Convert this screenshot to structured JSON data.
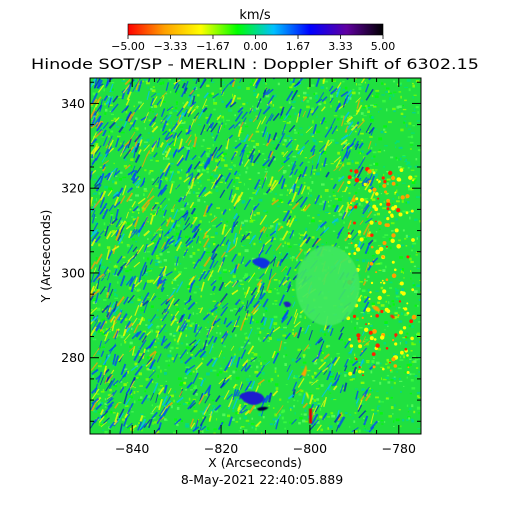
{
  "chart_data": {
    "type": "heatmap",
    "title": "Hinode SOT/SP - MERLIN : Doppler Shift of 6302.15",
    "date_label": "8-May-2021 22:40:05.889",
    "colorbar": {
      "label": "km/s",
      "range": [
        -5.0,
        5.0
      ],
      "ticks": [
        "-5.00",
        "-3.33",
        "-1.67",
        "0.00",
        "1.67",
        "3.33",
        "5.00"
      ],
      "tick_values": [
        -5.0,
        -3.333,
        -1.667,
        0.0,
        1.667,
        3.333,
        5.0
      ],
      "colors": [
        "#ff0000",
        "#ffa000",
        "#ffff00",
        "#00ff00",
        "#00c0ff",
        "#0000ff",
        "#6000a0",
        "#000000"
      ]
    },
    "xlabel": "X (Arcseconds)",
    "ylabel": "Y (Arcseconds)",
    "xlim": [
      -849.5,
      -775.0
    ],
    "ylim": [
      262.0,
      346.0
    ],
    "xticks": [
      -840,
      -820,
      -800,
      -780
    ],
    "yticks": [
      280,
      300,
      320,
      340
    ],
    "x_minor_step": 5,
    "y_minor_step": 5,
    "background_color": "#20e040"
  }
}
